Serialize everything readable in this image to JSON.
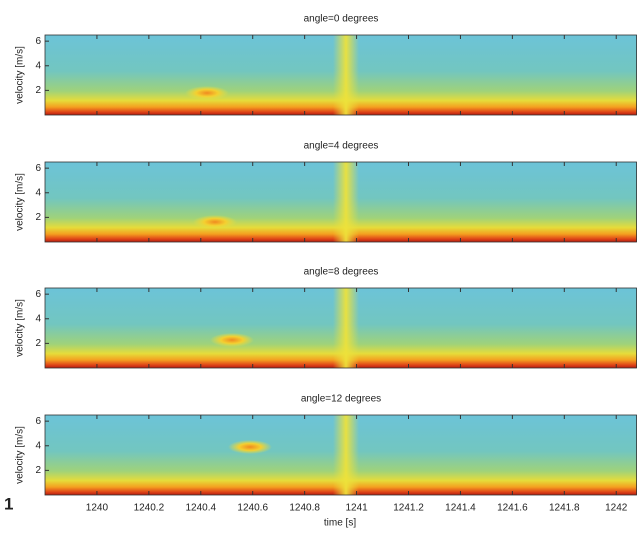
{
  "figure_label": "1",
  "chart_data": [
    {
      "type": "heatmap",
      "title": "angle=0 degrees",
      "ylabel": "velocity [m/s]",
      "xlim": [
        1239.8,
        1242.08
      ],
      "xticks": [
        1240,
        1240.2,
        1240.4,
        1240.6,
        1240.8,
        1241,
        1241.2,
        1241.4,
        1241.6,
        1241.8,
        1242
      ],
      "ylim": [
        0,
        6.5
      ],
      "yticks": [
        2,
        4,
        6
      ]
    },
    {
      "type": "heatmap",
      "title": "angle=4 degrees",
      "ylabel": "velocity [m/s]",
      "xlim": [
        1239.8,
        1242.08
      ],
      "xticks": [
        1240,
        1240.2,
        1240.4,
        1240.6,
        1240.8,
        1241,
        1241.2,
        1241.4,
        1241.6,
        1241.8,
        1242
      ],
      "ylim": [
        0,
        6.5
      ],
      "yticks": [
        2,
        4,
        6
      ]
    },
    {
      "type": "heatmap",
      "title": "angle=8 degrees",
      "ylabel": "velocity [m/s]",
      "xlim": [
        1239.8,
        1242.08
      ],
      "xticks": [
        1240,
        1240.2,
        1240.4,
        1240.6,
        1240.8,
        1241,
        1241.2,
        1241.4,
        1241.6,
        1241.8,
        1242
      ],
      "ylim": [
        0,
        6.5
      ],
      "yticks": [
        2,
        4,
        6
      ]
    },
    {
      "type": "heatmap",
      "title": "angle=12 degrees",
      "ylabel": "velocity [m/s]",
      "xlabel": "time [s]",
      "xlim": [
        1239.8,
        1242.08
      ],
      "xticks": [
        1240,
        1240.2,
        1240.4,
        1240.6,
        1240.8,
        1241,
        1241.2,
        1241.4,
        1241.6,
        1241.8,
        1242
      ],
      "ylim": [
        0,
        6.5
      ],
      "yticks": [
        2,
        4,
        6
      ]
    }
  ]
}
